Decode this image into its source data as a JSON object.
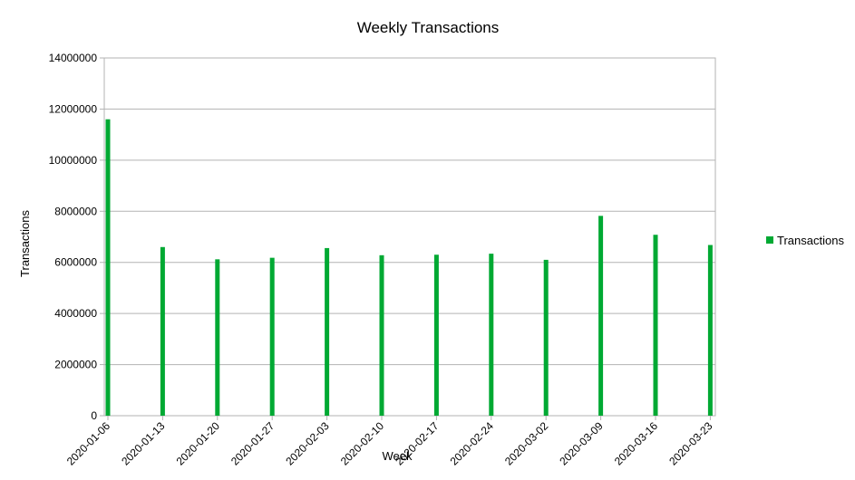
{
  "chart_data": {
    "type": "bar",
    "title": "Weekly Transactions",
    "xlabel": "Week",
    "ylabel": "Transactions",
    "ylim": [
      0,
      14000000
    ],
    "yticks": [
      0,
      2000000,
      4000000,
      6000000,
      8000000,
      10000000,
      12000000,
      14000000
    ],
    "grid": true,
    "legend_position": "right",
    "categories": [
      "2020-01-06",
      "2020-01-13",
      "2020-01-20",
      "2020-01-27",
      "2020-02-03",
      "2020-02-10",
      "2020-02-17",
      "2020-02-24",
      "2020-03-02",
      "2020-03-09",
      "2020-03-16",
      "2020-03-23"
    ],
    "series": [
      {
        "name": "Transactions",
        "color": "#00a933",
        "values": [
          11600000,
          6600000,
          6120000,
          6180000,
          6560000,
          6280000,
          6300000,
          6340000,
          6100000,
          7820000,
          7080000,
          6680000
        ]
      }
    ]
  }
}
